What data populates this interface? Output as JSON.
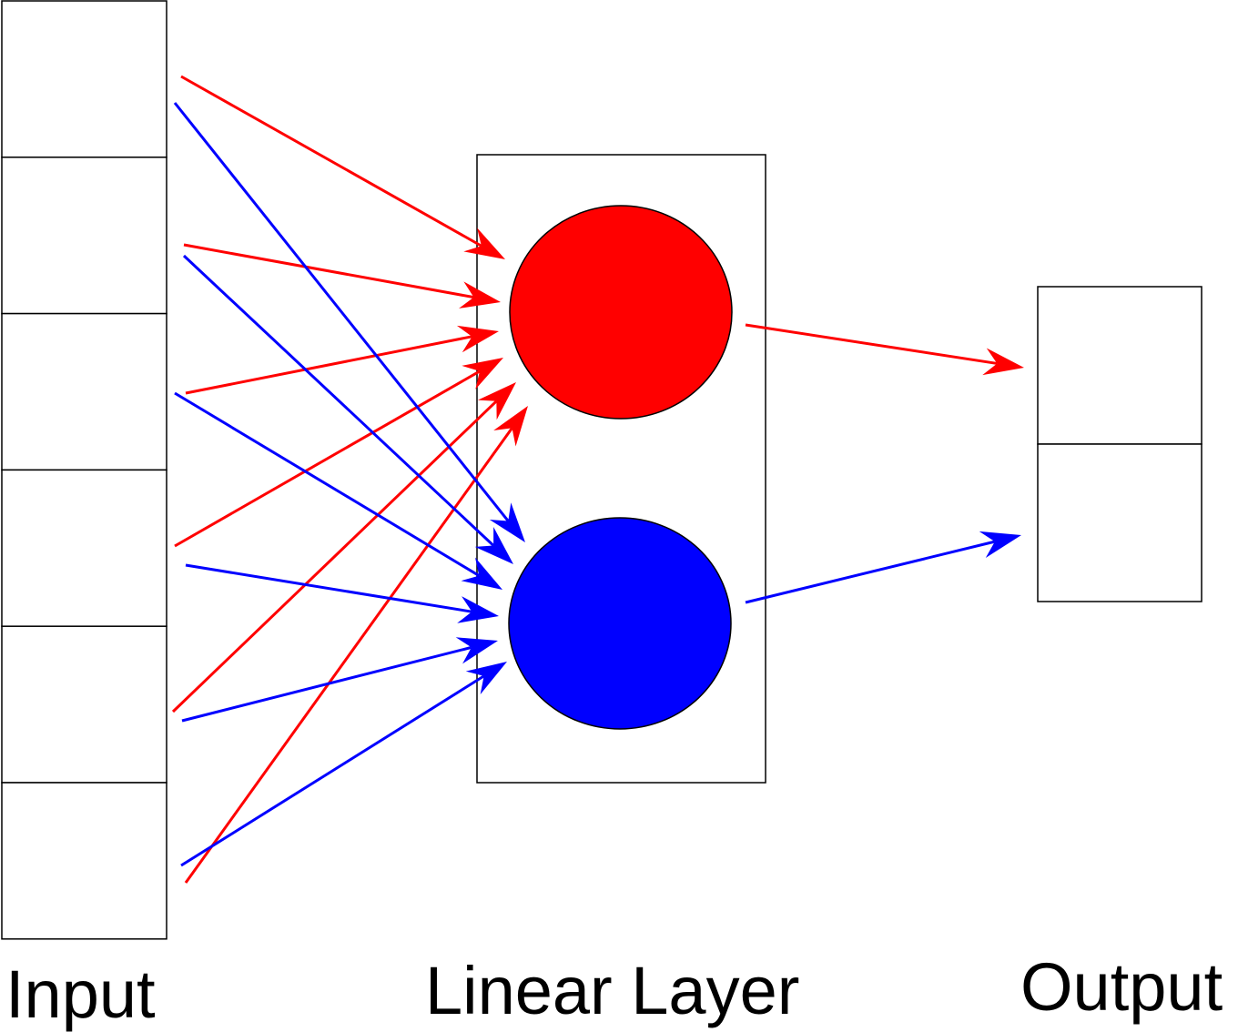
{
  "labels": {
    "input": "Input",
    "linear_layer": "Linear Layer",
    "output": "Output"
  },
  "input_cell_count": 6,
  "neuron_count": 2,
  "output_cell_count": 2,
  "colors": {
    "neuron_1": "#ff0000",
    "neuron_2": "#0000ff",
    "outline": "#000000",
    "background": "#ffffff"
  }
}
